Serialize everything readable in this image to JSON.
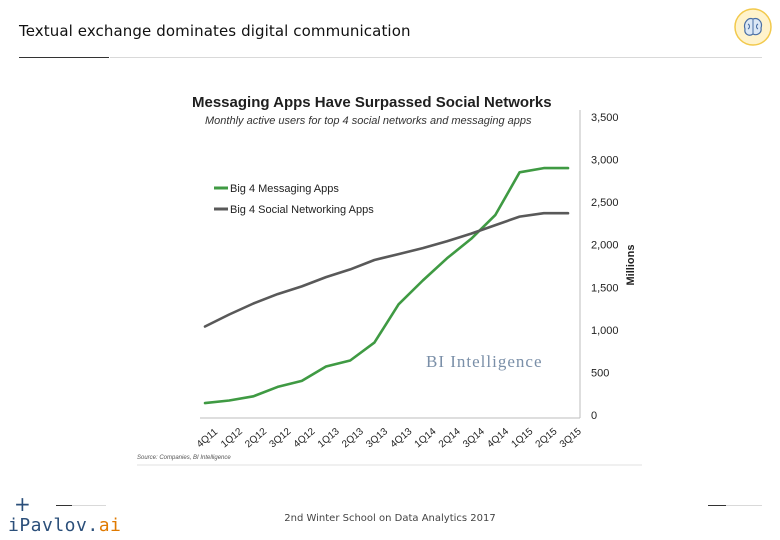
{
  "slide": {
    "title": "Textual exchange dominates digital communication",
    "footer_text": "2nd Winter School on Data Analytics 2017",
    "brand_prefix": "iPavlov.",
    "brand_suffix": "ai",
    "plus_icon": "+"
  },
  "chart_data": {
    "type": "line",
    "title": "Messaging Apps Have Surpassed Social Networks",
    "subtitle": "Monthly active users for top 4 social networks and messaging apps",
    "ylabel": "Millions",
    "xlabel": "",
    "ylim": [
      0,
      3500
    ],
    "yticks": [
      "0",
      "500",
      "1,000",
      "1,500",
      "2,000",
      "2,500",
      "3,000",
      "3,500"
    ],
    "ytick_values": [
      0,
      500,
      1000,
      1500,
      2000,
      2500,
      3000,
      3500
    ],
    "categories": [
      "4Q11",
      "1Q12",
      "2Q12",
      "3Q12",
      "4Q12",
      "1Q13",
      "2Q13",
      "3Q13",
      "4Q13",
      "1Q14",
      "2Q14",
      "3Q14",
      "4Q14",
      "1Q15",
      "2Q15",
      "3Q15"
    ],
    "legend_position": "upper-left",
    "grid": false,
    "watermark": "BI Intelligence",
    "source": "Source: Companies, BI Intelligence",
    "series": [
      {
        "name": "Big 4 Messaging Apps",
        "color": "#3f9a43",
        "values": [
          140,
          170,
          220,
          330,
          400,
          570,
          640,
          850,
          1300,
          1580,
          1840,
          2070,
          2350,
          2850,
          2900,
          2900
        ]
      },
      {
        "name": "Big 4 Social Networking Apps",
        "color": "#595959",
        "values": [
          1040,
          1180,
          1310,
          1420,
          1510,
          1620,
          1710,
          1820,
          1890,
          1960,
          2040,
          2130,
          2230,
          2330,
          2370,
          2370
        ]
      }
    ]
  }
}
